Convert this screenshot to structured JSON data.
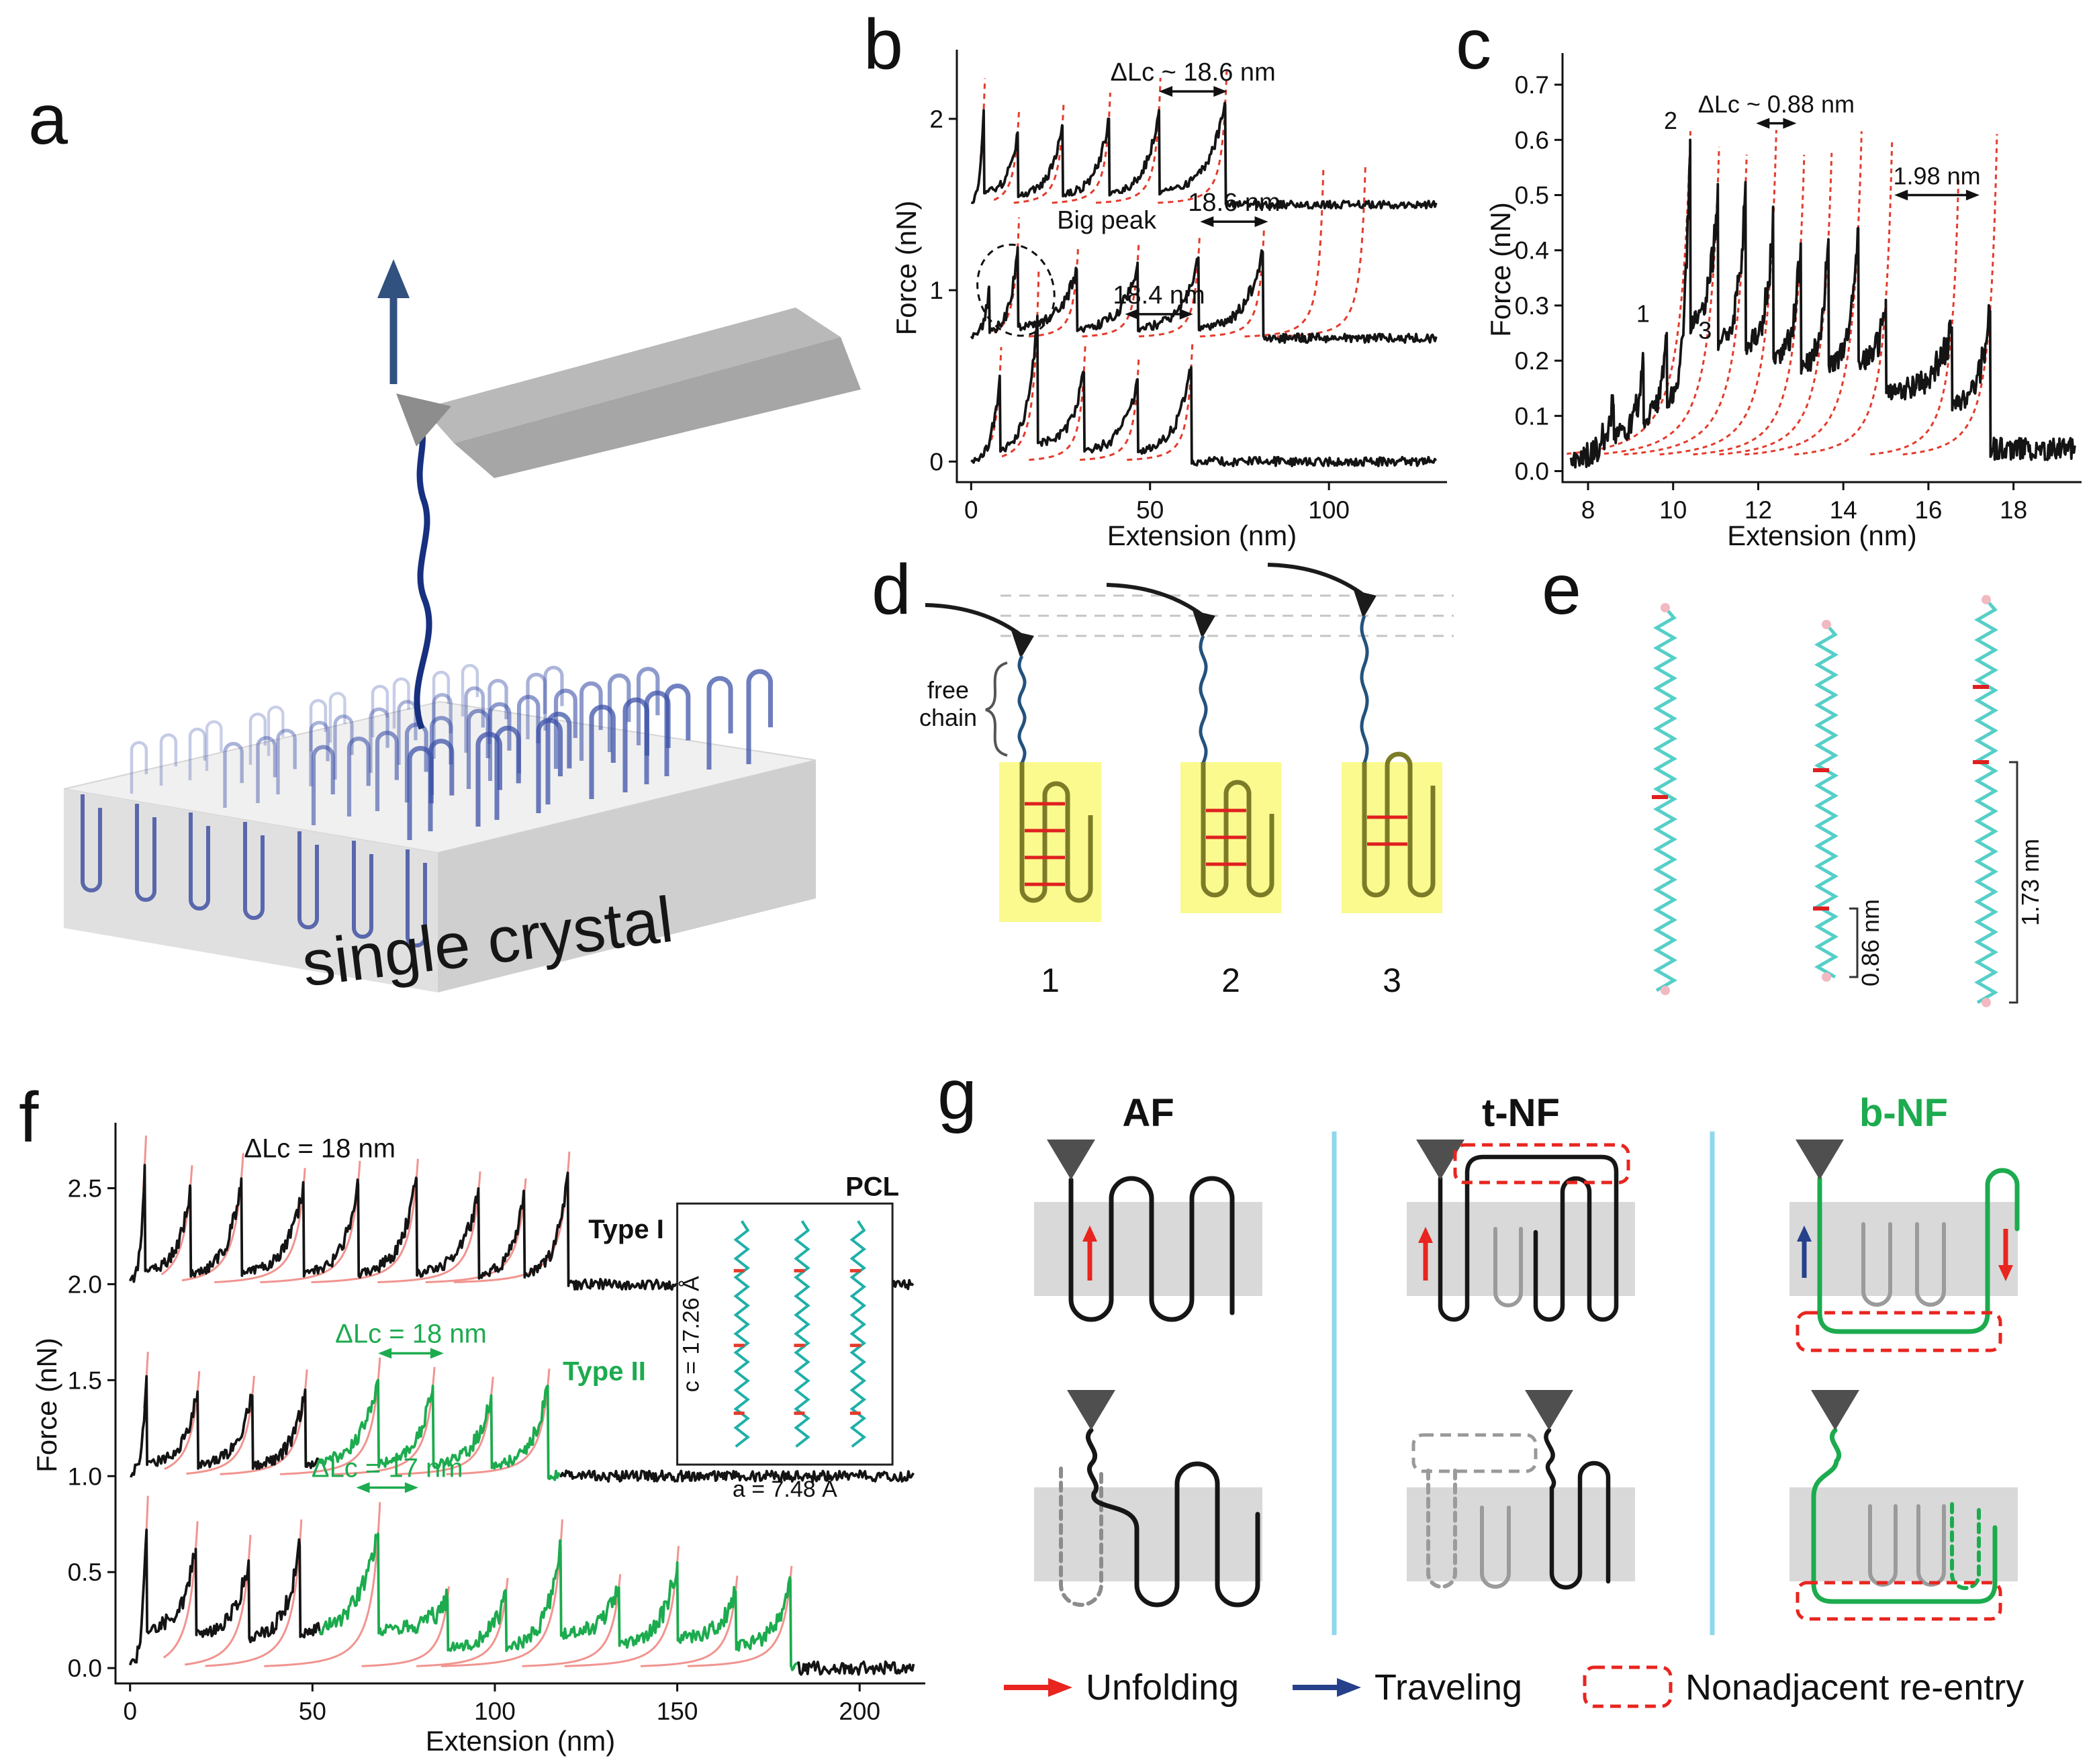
{
  "panel_labels": {
    "a": "a",
    "b": "b",
    "c": "c",
    "d": "d",
    "e": "e",
    "f": "f",
    "g": "g"
  },
  "panel_a": {
    "caption": "single crystal"
  },
  "panel_d": {
    "free_chain_label": "free chain",
    "numbers": [
      "1",
      "2",
      "3"
    ]
  },
  "panel_e": {
    "measure_small": "0.86 nm",
    "measure_large": "1.73 nm"
  },
  "panel_g": {
    "columns": [
      {
        "title": "AF",
        "color": "#111111"
      },
      {
        "title": "t-NF",
        "color": "#111111"
      },
      {
        "title": "b-NF",
        "color": "#1cab4e"
      }
    ],
    "legend": {
      "unfolding": "Unfolding",
      "traveling": "Traveling",
      "nonadjacent": "Nonadjacent re-entry",
      "unfold_color": "#e8251f",
      "travel_color": "#27408b",
      "box_color": "#e8251f"
    }
  },
  "chart_data": [
    {
      "id": "b",
      "type": "line",
      "title": "",
      "xlabel": "Extension (nm)",
      "ylabel": "Force (nN)",
      "xlim": [
        -4,
        133
      ],
      "ylim": [
        -0.12,
        2.38
      ],
      "xticks": [
        0,
        50,
        100
      ],
      "yticks": [
        0,
        1,
        2
      ],
      "ytick_decimals": 0,
      "grid": false,
      "legend_position": "none",
      "trace_color": "#141414",
      "fit_color": "#e43b2c",
      "fit_dash": "8 7",
      "fit_L_offset": 3,
      "fit_cap_factor": 1.35,
      "traces": [
        {
          "name": "curve-1",
          "baseline": 1.5,
          "noise": 0.022,
          "residual": 0.12,
          "start_x": 0,
          "end_x": 130,
          "peaks": [
            {
              "x": 3.5,
              "h": 0.55
            },
            {
              "x": 13,
              "h": 0.42
            },
            {
              "x": 25.5,
              "h": 0.46
            },
            {
              "x": 38.5,
              "h": 0.5
            },
            {
              "x": 52.5,
              "h": 0.55
            },
            {
              "x": 71,
              "h": 0.58
            }
          ]
        },
        {
          "name": "curve-2",
          "baseline": 0.72,
          "noise": 0.026,
          "residual": 0.12,
          "start_x": 0,
          "end_x": 130,
          "peaks": [
            {
              "x": 5,
              "h": 0.3,
              "fit": false
            },
            {
              "x": 13,
              "h": 0.53
            },
            {
              "x": 29.5,
              "h": 0.4
            },
            {
              "x": 46.5,
              "h": 0.44
            },
            {
              "x": 63.5,
              "h": 0.47
            },
            {
              "x": 81.5,
              "h": 0.5
            }
          ],
          "extra_fit_L": [
            101,
            113
          ],
          "extra_cap": 1.05
        },
        {
          "name": "curve-3",
          "baseline": 0.0,
          "noise": 0.026,
          "residual": 0.12,
          "start_x": 0,
          "end_x": 130,
          "peaks": [
            {
              "x": 8,
              "h": 0.5
            },
            {
              "x": 18.5,
              "h": 0.85
            },
            {
              "x": 31.5,
              "h": 0.52
            },
            {
              "x": 46.5,
              "h": 0.48
            },
            {
              "x": 61.5,
              "h": 0.55
            }
          ]
        }
      ],
      "annotations": [
        {
          "type": "span",
          "text": "ΔLc ~ 18.6 nm",
          "x1": 52.5,
          "x2": 71.5,
          "y": 2.16,
          "color": "#111111"
        },
        {
          "type": "ellipse",
          "x": 12.5,
          "y": 1.0,
          "rx": 10.5,
          "ry": 0.27,
          "rotate": -18,
          "color": "#111111"
        },
        {
          "type": "text",
          "text": "Big peak",
          "x": 24,
          "y": 1.36,
          "anchor": "start",
          "color": "#111111"
        },
        {
          "type": "span",
          "text": "18.6 nm",
          "x1": 64,
          "x2": 83,
          "y": 1.4,
          "color": "#111111"
        },
        {
          "type": "span",
          "text": "18.4 nm",
          "x1": 43,
          "x2": 62,
          "y": 0.86,
          "color": "#111111"
        }
      ]
    },
    {
      "id": "c",
      "type": "line",
      "title": "",
      "xlabel": "Extension (nm)",
      "ylabel": "Force (nN)",
      "xlim": [
        7.4,
        19.6
      ],
      "ylim": [
        -0.02,
        0.75
      ],
      "xticks": [
        8,
        10,
        12,
        14,
        16,
        18
      ],
      "yticks": [
        0,
        0.1,
        0.2,
        0.3,
        0.4,
        0.5,
        0.6,
        0.7
      ],
      "ytick_decimals": 1,
      "grid": false,
      "legend_position": "none",
      "trace_color": "#141414",
      "fit_color": "#e43b2c",
      "fit_dash": "7 6",
      "fit_L_offset": 0.5,
      "fit_cap_abs": 0.62,
      "traces": [
        {
          "name": "curve",
          "baseline": 0.02,
          "noise": 0.02,
          "residual": 0.42,
          "start_x": 7.6,
          "end_x": 19.45,
          "step": 0.02,
          "tail_level": 0.04,
          "peaks": [
            {
              "x": 8.6,
              "h": 0.1,
              "fit": false
            },
            {
              "x": 9.3,
              "h": 0.17,
              "fit": false
            },
            {
              "x": 9.85,
              "h": 0.23,
              "fit": false
            },
            {
              "x": 10.4,
              "h": 0.58
            },
            {
              "x": 11.05,
              "h": 0.5
            },
            {
              "x": 11.7,
              "h": 0.49
            },
            {
              "x": 12.35,
              "h": 0.43
            },
            {
              "x": 13.0,
              "h": 0.39
            },
            {
              "x": 13.65,
              "h": 0.4
            },
            {
              "x": 14.35,
              "h": 0.42
            },
            {
              "x": 15.0,
              "h": 0.29
            },
            {
              "x": 16.55,
              "h": 0.24
            },
            {
              "x": 17.45,
              "h": 0.27
            }
          ]
        }
      ],
      "annotations": [
        {
          "type": "span",
          "text": "ΔLc ~ 0.88 nm",
          "x1": 11.95,
          "x2": 12.9,
          "y": 0.63,
          "color": "#111111"
        },
        {
          "type": "span",
          "text": "1.98 nm",
          "x1": 15.2,
          "x2": 17.2,
          "y": 0.5,
          "color": "#111111"
        },
        {
          "type": "text",
          "text": "2",
          "x": 10.1,
          "y": 0.62,
          "anchor": "end",
          "color": "#111111"
        },
        {
          "type": "text",
          "text": "1",
          "x": 9.45,
          "y": 0.27,
          "anchor": "end",
          "color": "#111111"
        },
        {
          "type": "text",
          "text": "3",
          "x": 10.75,
          "y": 0.24,
          "anchor": "middle",
          "color": "#111111"
        }
      ]
    },
    {
      "id": "f",
      "type": "line",
      "title": "",
      "xlabel": "Extension (nm)",
      "ylabel": "Force (nN)",
      "xlim": [
        -4,
        218
      ],
      "ylim": [
        -0.08,
        2.82
      ],
      "xticks": [
        0,
        50,
        100,
        150,
        200
      ],
      "yticks": [
        0,
        0.5,
        1,
        1.5,
        2,
        2.5
      ],
      "ytick_decimals": 1,
      "grid": false,
      "legend_position": "none",
      "trace_color": "#141414",
      "fit_color": "#f1948f",
      "fit_dash": "",
      "fit_L_offset": 5,
      "fit_cap_factor": 1.25,
      "traces": [
        {
          "name": "type-1",
          "baseline": 2.0,
          "noise": 0.028,
          "residual": 0.1,
          "start_x": 0,
          "end_x": 215,
          "peaks": [
            {
              "x": 4,
              "h": 0.62
            },
            {
              "x": 16.5,
              "h": 0.5
            },
            {
              "x": 30.5,
              "h": 0.55
            },
            {
              "x": 47.5,
              "h": 0.5
            },
            {
              "x": 62.5,
              "h": 0.52
            },
            {
              "x": 78.5,
              "h": 0.55
            },
            {
              "x": 95.5,
              "h": 0.48
            },
            {
              "x": 108,
              "h": 0.45
            },
            {
              "x": 120,
              "h": 0.58
            }
          ]
        },
        {
          "name": "type-2",
          "baseline": 1.0,
          "noise": 0.028,
          "residual": 0.12,
          "start_x": 0,
          "end_x": 215,
          "colors": [
            {
              "until": 52,
              "color": "#141414"
            },
            {
              "until": 118,
              "color": "#1cab4e"
            },
            {
              "until": 999,
              "color": "#141414"
            }
          ],
          "peaks": [
            {
              "x": 4.5,
              "h": 0.52
            },
            {
              "x": 18.5,
              "h": 0.44
            },
            {
              "x": 33.5,
              "h": 0.42
            },
            {
              "x": 48,
              "h": 0.45
            },
            {
              "x": 68,
              "h": 0.5
            },
            {
              "x": 83,
              "h": 0.47
            },
            {
              "x": 99,
              "h": 0.42
            },
            {
              "x": 114.5,
              "h": 0.47
            }
          ]
        },
        {
          "name": "type-3",
          "baseline": 0.0,
          "noise": 0.034,
          "residual": 0.28,
          "start_x": 0,
          "end_x": 215,
          "tail_level": 0.0,
          "colors": [
            {
              "until": 52,
              "color": "#141414"
            },
            {
              "until": 183,
              "color": "#1cab4e"
            },
            {
              "until": 999,
              "color": "#141414"
            }
          ],
          "peaks": [
            {
              "x": 4.5,
              "h": 0.72
            },
            {
              "x": 18,
              "h": 0.62
            },
            {
              "x": 32.5,
              "h": 0.56
            },
            {
              "x": 46.5,
              "h": 0.64
            },
            {
              "x": 68,
              "h": 0.7
            },
            {
              "x": 87,
              "h": 0.36
            },
            {
              "x": 103,
              "h": 0.38
            },
            {
              "x": 118,
              "h": 0.63
            },
            {
              "x": 134,
              "h": 0.42
            },
            {
              "x": 150,
              "h": 0.55
            },
            {
              "x": 166,
              "h": 0.4
            },
            {
              "x": 181,
              "h": 0.46
            }
          ]
        }
      ],
      "annotations": [
        {
          "type": "text",
          "text": "ΔLc = 18 nm",
          "x": 52,
          "y": 2.66,
          "color": "#111111"
        },
        {
          "type": "text",
          "text": "Type I",
          "x": 136,
          "y": 2.24,
          "color": "#111111",
          "weight": "bold"
        },
        {
          "type": "span",
          "text": "ΔLc = 18 nm",
          "x1": 68,
          "x2": 86,
          "y": 1.64,
          "color": "#1cab4e"
        },
        {
          "type": "text",
          "text": "Type II",
          "x": 130,
          "y": 1.5,
          "color": "#1cab4e",
          "weight": "bold"
        },
        {
          "type": "span",
          "text": "ΔLc = 17 nm",
          "x1": 62,
          "x2": 79,
          "y": 0.94,
          "color": "#1cab4e"
        }
      ],
      "inset": {
        "x1": 150,
        "y1": 1.06,
        "x2": 209,
        "y2": 2.42,
        "label": "PCL",
        "left_label": "c = 17.26 Å",
        "bottom_label": "a = 7.48 Å",
        "chain_color": "#1fb0a8",
        "mark_color": "#e43b2c"
      }
    }
  ]
}
